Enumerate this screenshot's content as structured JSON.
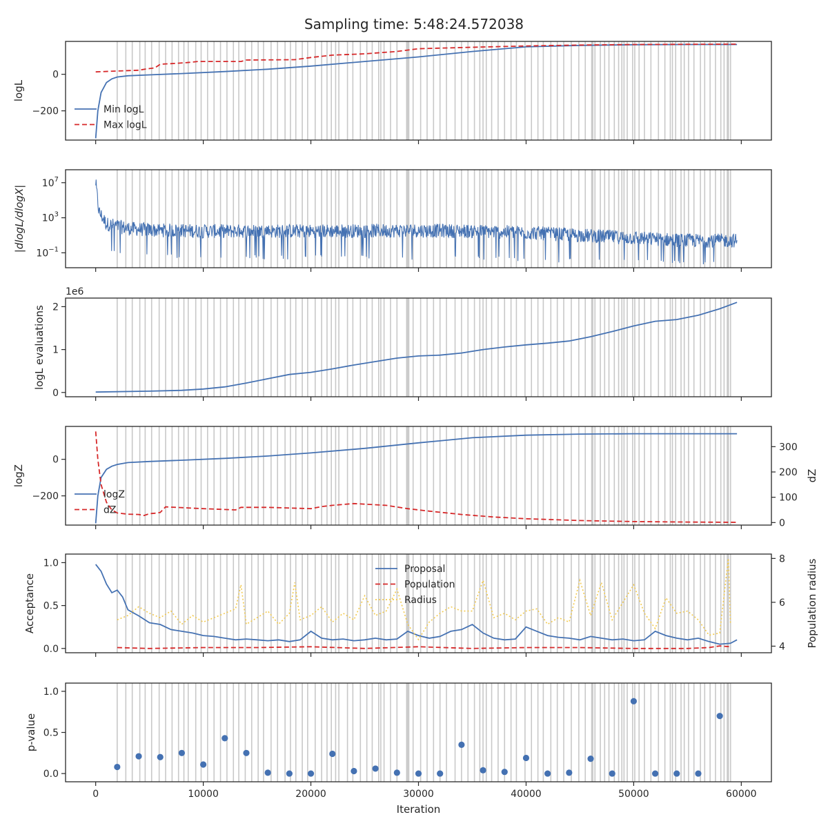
{
  "title": "Sampling time: 5:48:24.572038",
  "colors": {
    "blue": "#4471b2",
    "red": "#d62728",
    "yellow": "#f2c94c",
    "gray_bands": "#c8c8c8",
    "axes": "#262626"
  },
  "insertion_iterations": [
    2000,
    2800,
    3400,
    4100,
    4600,
    5200,
    5900,
    6500,
    7100,
    7700,
    8200,
    8600,
    9300,
    9800,
    10400,
    11000,
    11600,
    12200,
    12800,
    13300,
    13900,
    14500,
    15100,
    15600,
    16300,
    16900,
    17600,
    18100,
    18600,
    19200,
    19700,
    20400,
    21000,
    21500,
    21900,
    22300,
    22600,
    23400,
    23900,
    24600,
    25200,
    25700,
    26300,
    26500,
    26800,
    27400,
    28000,
    28900,
    29000,
    29100,
    29500,
    30200,
    30800,
    31400,
    32000,
    32600,
    33400,
    34000,
    34600,
    35200,
    35700,
    36000,
    36300,
    36800,
    37400,
    38000,
    38600,
    39100,
    39900,
    40500,
    41100,
    41600,
    42300,
    42900,
    43500,
    44200,
    44900,
    45500,
    46100,
    46200,
    46400,
    46900,
    47300,
    47700,
    48200,
    48600,
    48900,
    49100,
    49400,
    49900,
    50100,
    50500,
    51000,
    51600,
    52300,
    52900,
    53400,
    53600,
    53900,
    54400,
    54700,
    55100,
    55600,
    56200,
    56600,
    57100,
    57600,
    58100,
    58400,
    58700,
    58800,
    59000
  ],
  "chart_data": [
    {
      "type": "line",
      "panel": "logL",
      "ylabel": "logL",
      "ylim": [
        -360,
        180
      ],
      "yticks": [
        0,
        -200
      ],
      "ytick_labels": [
        "0",
        "−200"
      ],
      "legend": "lower-left",
      "series": [
        {
          "name": "Min logL",
          "style": "solid",
          "x": [
            0,
            200,
            500,
            1000,
            1500,
            2000,
            3000,
            5000,
            8000,
            12000,
            16000,
            20000,
            25000,
            30000,
            35000,
            40000,
            45000,
            50000,
            55000,
            59600
          ],
          "y": [
            -350,
            -200,
            -100,
            -45,
            -25,
            -15,
            -8,
            -3,
            4,
            15,
            28,
            45,
            70,
            95,
            125,
            150,
            158,
            162,
            163,
            163
          ]
        },
        {
          "name": "Max logL",
          "style": "dashed",
          "x": [
            0,
            2000,
            4000,
            4800,
            5500,
            6000,
            7500,
            8500,
            9500,
            13500,
            14000,
            18500,
            20000,
            22000,
            25000,
            28000,
            30000,
            35000,
            40000,
            45000,
            50000,
            55000,
            59600
          ],
          "y": [
            13,
            18,
            22,
            30,
            35,
            55,
            60,
            64,
            70,
            70,
            78,
            80,
            92,
            105,
            112,
            125,
            140,
            148,
            155,
            160,
            163,
            164,
            165
          ]
        }
      ]
    },
    {
      "type": "line",
      "panel": "dlogL",
      "ylabel": "|dlogL/dlogX|",
      "yscale": "log",
      "ylim": [
        0.002,
        300000000
      ],
      "yticks": [
        10000000,
        1000,
        0.1
      ],
      "ytick_labels": [
        "10^7",
        "10^3",
        "10^-1"
      ],
      "series": [
        {
          "name": "",
          "style": "noisy",
          "x": [
            0,
            300,
            1000,
            3000,
            5000,
            10000,
            20000,
            30000,
            35000,
            40000,
            45000,
            50000,
            55000,
            59600
          ],
          "y_center": [
            10000000,
            5000,
            200,
            60,
            40,
            30,
            30,
            35,
            30,
            20,
            10,
            5,
            2.5,
            2.5
          ],
          "y_upper": [
            30000000,
            30000,
            1000,
            200,
            150,
            120,
            120,
            150,
            120,
            80,
            40,
            20,
            12,
            10
          ],
          "y_lower": [
            10000,
            1,
            0.1,
            0.05,
            0.03,
            0.02,
            0.02,
            0.02,
            0.02,
            0.01,
            0.008,
            0.006,
            0.005,
            0.005
          ]
        }
      ]
    },
    {
      "type": "line",
      "panel": "logL evaluations",
      "ylabel": "logL evaluations",
      "offset_label": "1e6",
      "ylim": [
        -0.1,
        2.2
      ],
      "yticks": [
        0,
        1,
        2
      ],
      "ytick_labels": [
        "0",
        "1",
        "2"
      ],
      "series": [
        {
          "name": "",
          "style": "solid",
          "x": [
            0,
            5000,
            8000,
            10000,
            12000,
            14000,
            16000,
            18000,
            20000,
            22000,
            24000,
            26000,
            28000,
            30000,
            32000,
            34000,
            36000,
            38000,
            40000,
            42000,
            44000,
            46000,
            48000,
            50000,
            52000,
            54000,
            56000,
            58000,
            59600
          ],
          "y": [
            0.01,
            0.03,
            0.05,
            0.08,
            0.13,
            0.22,
            0.32,
            0.42,
            0.47,
            0.55,
            0.64,
            0.72,
            0.8,
            0.85,
            0.87,
            0.92,
            1.0,
            1.06,
            1.11,
            1.15,
            1.2,
            1.3,
            1.42,
            1.55,
            1.66,
            1.7,
            1.8,
            1.95,
            2.1
          ]
        }
      ]
    },
    {
      "type": "line",
      "panel": "logZ",
      "ylabel": "logZ",
      "y2label": "dZ",
      "ylim": [
        -360,
        180
      ],
      "yticks": [
        0,
        -200
      ],
      "ytick_labels": [
        "0",
        "−200"
      ],
      "y2lim": [
        -10,
        380
      ],
      "y2ticks": [
        0,
        100,
        200,
        300
      ],
      "y2tick_labels": [
        "0",
        "100",
        "200",
        "300"
      ],
      "legend": "lower-left",
      "series": [
        {
          "name": "logZ",
          "style": "solid",
          "axis": "left",
          "x": [
            0,
            200,
            500,
            1000,
            1500,
            2000,
            3000,
            5000,
            8000,
            12000,
            16000,
            20000,
            25000,
            30000,
            35000,
            40000,
            45000,
            50000,
            55000,
            59600
          ],
          "y": [
            -350,
            -200,
            -100,
            -55,
            -38,
            -28,
            -18,
            -12,
            -5,
            5,
            18,
            35,
            60,
            90,
            118,
            132,
            138,
            140,
            140,
            140
          ]
        },
        {
          "name": "dZ",
          "style": "dashed",
          "axis": "right",
          "x": [
            0,
            200,
            500,
            1000,
            1500,
            2000,
            3000,
            4000,
            4500,
            5000,
            5500,
            6000,
            6500,
            10000,
            13000,
            13500,
            16000,
            20000,
            21000,
            22000,
            24000,
            27000,
            29000,
            31000,
            34000,
            37000,
            40000,
            45000,
            50000,
            55000,
            59600
          ],
          "y": [
            360,
            250,
            150,
            80,
            50,
            38,
            33,
            32,
            28,
            35,
            37,
            40,
            62,
            55,
            50,
            60,
            60,
            55,
            63,
            68,
            75,
            68,
            55,
            45,
            32,
            22,
            15,
            8,
            4,
            2,
            1
          ]
        }
      ]
    },
    {
      "type": "line",
      "panel": "acceptance",
      "ylabel": "Acceptance",
      "y2label": "Population radius",
      "ylim": [
        -0.05,
        1.1
      ],
      "yticks": [
        0,
        0.5,
        1.0
      ],
      "ytick_labels": [
        "0.0",
        "0.5",
        "1.0"
      ],
      "y2lim": [
        3.7,
        8.2
      ],
      "y2ticks": [
        4,
        6,
        8
      ],
      "y2tick_labels": [
        "4",
        "6",
        "8"
      ],
      "legend": "upper-center",
      "series": [
        {
          "name": "Proposal",
          "style": "solid",
          "axis": "left",
          "x": [
            0,
            500,
            1000,
            1500,
            2000,
            2500,
            3000,
            4000,
            5000,
            6000,
            7000,
            8000,
            9000,
            10000,
            11000,
            12000,
            13000,
            14000,
            15000,
            16000,
            17000,
            18000,
            19000,
            20000,
            21000,
            22000,
            23000,
            24000,
            25000,
            26000,
            27000,
            28000,
            29000,
            30000,
            31000,
            32000,
            33000,
            34000,
            35000,
            36000,
            37000,
            38000,
            39000,
            40000,
            41000,
            42000,
            43000,
            44000,
            45000,
            46000,
            47000,
            48000,
            49000,
            50000,
            51000,
            52000,
            53000,
            54000,
            55000,
            56000,
            57000,
            58000,
            59000,
            59600
          ],
          "y": [
            0.98,
            0.9,
            0.75,
            0.65,
            0.68,
            0.6,
            0.45,
            0.38,
            0.3,
            0.28,
            0.22,
            0.2,
            0.18,
            0.15,
            0.14,
            0.12,
            0.1,
            0.11,
            0.1,
            0.09,
            0.1,
            0.08,
            0.1,
            0.2,
            0.12,
            0.1,
            0.11,
            0.09,
            0.1,
            0.12,
            0.1,
            0.11,
            0.2,
            0.15,
            0.12,
            0.14,
            0.2,
            0.22,
            0.28,
            0.18,
            0.12,
            0.1,
            0.11,
            0.25,
            0.2,
            0.15,
            0.13,
            0.12,
            0.1,
            0.14,
            0.12,
            0.1,
            0.11,
            0.09,
            0.1,
            0.2,
            0.15,
            0.12,
            0.1,
            0.12,
            0.08,
            0.05,
            0.06,
            0.1
          ]
        },
        {
          "name": "Population",
          "style": "dashed",
          "axis": "left",
          "x": [
            2000,
            5000,
            10000,
            15000,
            20000,
            25000,
            30000,
            35000,
            40000,
            45000,
            50000,
            55000,
            57000,
            58000,
            59000
          ],
          "y": [
            0.01,
            0.0,
            0.01,
            0.01,
            0.02,
            0.0,
            0.02,
            0.0,
            0.01,
            0.01,
            0.0,
            0.0,
            0.01,
            0.03,
            0.02
          ]
        },
        {
          "name": "Radius",
          "style": "dotted",
          "axis": "right",
          "x": [
            2000,
            3000,
            4000,
            5000,
            6000,
            7000,
            8000,
            9000,
            10000,
            11000,
            12000,
            13000,
            13500,
            14000,
            15000,
            16000,
            17000,
            18000,
            18500,
            19000,
            20000,
            21000,
            22000,
            23000,
            24000,
            25000,
            26000,
            27000,
            28000,
            29000,
            30000,
            31000,
            32000,
            33000,
            34000,
            35000,
            36000,
            37000,
            38000,
            39000,
            40000,
            41000,
            42000,
            43000,
            44000,
            45000,
            46000,
            47000,
            48000,
            49000,
            50000,
            51000,
            52000,
            53000,
            54000,
            55000,
            56000,
            57000,
            58000,
            58800,
            59000
          ],
          "y": [
            5.2,
            5.4,
            5.8,
            5.5,
            5.3,
            5.6,
            5.0,
            5.4,
            5.1,
            5.3,
            5.5,
            5.7,
            6.8,
            5.0,
            5.3,
            5.6,
            5.0,
            5.5,
            6.9,
            5.2,
            5.4,
            5.8,
            5.1,
            5.5,
            5.2,
            6.3,
            5.4,
            5.6,
            6.6,
            5.0,
            4.3,
            5.1,
            5.5,
            5.8,
            5.6,
            5.6,
            7.0,
            5.3,
            5.5,
            5.2,
            5.6,
            5.7,
            5.0,
            5.3,
            5.1,
            7.0,
            5.4,
            6.9,
            5.2,
            6.0,
            6.8,
            5.5,
            4.8,
            6.2,
            5.5,
            5.6,
            5.2,
            4.5,
            4.6,
            8.0,
            5.0
          ]
        }
      ]
    },
    {
      "type": "scatter",
      "panel": "p-value",
      "ylabel": "p-value",
      "xlabel": "Iteration",
      "ylim": [
        -0.1,
        1.1
      ],
      "yticks": [
        0,
        0.5,
        1.0
      ],
      "ytick_labels": [
        "0.0",
        "0.5",
        "1.0"
      ],
      "series": [
        {
          "name": "",
          "x": [
            2000,
            4000,
            6000,
            8000,
            10000,
            12000,
            14000,
            16000,
            18000,
            20000,
            22000,
            24000,
            26000,
            28000,
            30000,
            32000,
            34000,
            36000,
            38000,
            40000,
            42000,
            44000,
            46000,
            48000,
            50000,
            52000,
            54000,
            56000,
            58000
          ],
          "y": [
            0.08,
            0.21,
            0.2,
            0.25,
            0.11,
            0.43,
            0.25,
            0.01,
            0.0,
            0.0,
            0.24,
            0.03,
            0.06,
            0.01,
            0.0,
            0.0,
            0.35,
            0.04,
            0.02,
            0.19,
            0.0,
            0.01,
            0.18,
            0.0,
            0.88,
            0.0,
            0.0,
            0.0,
            0.7
          ]
        }
      ]
    }
  ],
  "xaxis": {
    "xlim": [
      -2800,
      62800
    ],
    "ticks": [
      0,
      10000,
      20000,
      30000,
      40000,
      50000,
      60000
    ],
    "tick_labels": [
      "0",
      "10000",
      "20000",
      "30000",
      "40000",
      "50000",
      "60000"
    ],
    "label": "Iteration"
  }
}
